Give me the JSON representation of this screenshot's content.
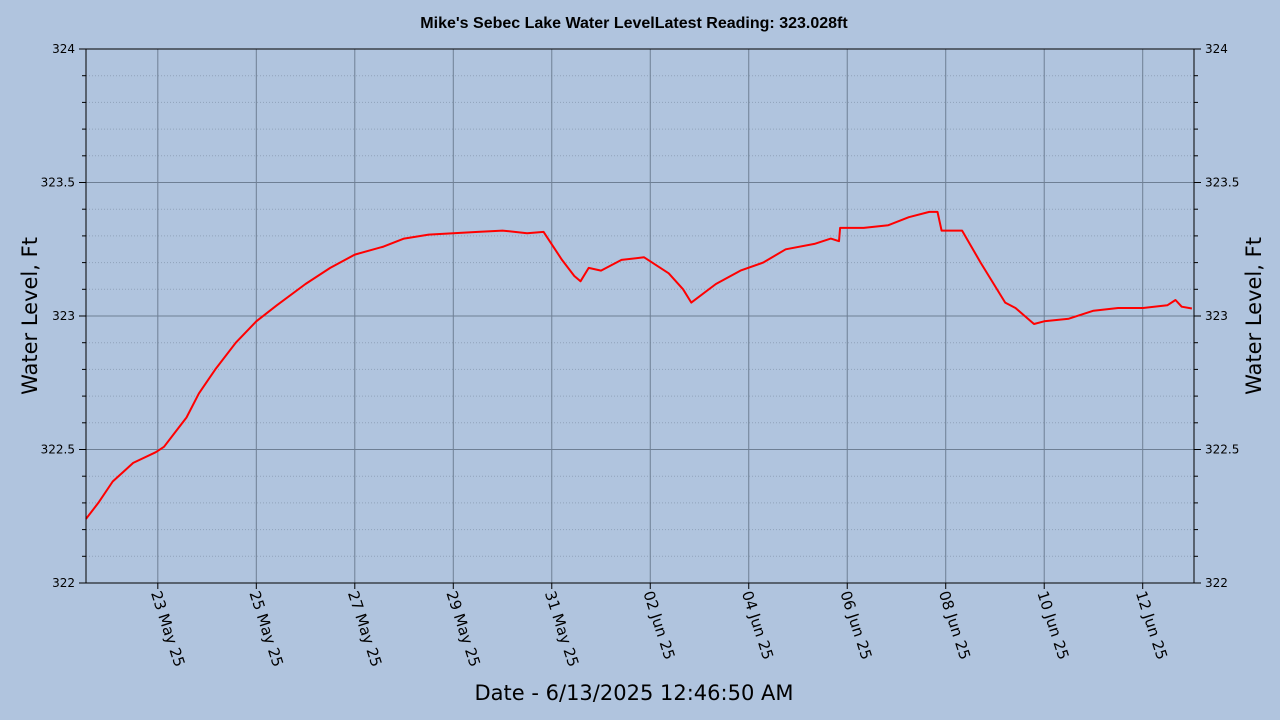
{
  "chart_data": {
    "type": "line",
    "title": "Mike's Sebec Lake Water LevelLatest Reading: 323.028ft",
    "xlabel": "Date - 6/13/2025 12:46:50 AM",
    "ylabel": "Water Level, Ft",
    "ylabel_right": "Water Level, Ft",
    "ylim": [
      322,
      324
    ],
    "xlim": [
      "2025-05-21T13:00",
      "2025-06-13T01:00"
    ],
    "yticks": [
      "322",
      "322.5",
      "323",
      "323.5",
      "324"
    ],
    "xticks": [
      {
        "date": "2025-05-23",
        "label": "23 May 25"
      },
      {
        "date": "2025-05-25",
        "label": "25 May 25"
      },
      {
        "date": "2025-05-27",
        "label": "27 May 25"
      },
      {
        "date": "2025-05-29",
        "label": "29 May 25"
      },
      {
        "date": "2025-05-31",
        "label": "31 May 25"
      },
      {
        "date": "2025-06-02",
        "label": "02 Jun 25"
      },
      {
        "date": "2025-06-04",
        "label": "04 Jun 25"
      },
      {
        "date": "2025-06-06",
        "label": "06 Jun 25"
      },
      {
        "date": "2025-06-08",
        "label": "08 Jun 25"
      },
      {
        "date": "2025-06-10",
        "label": "10 Jun 25"
      },
      {
        "date": "2025-06-12",
        "label": "12 Jun 25"
      }
    ],
    "grid": true,
    "colors": {
      "background": "#b0c4de",
      "line": "#ff0000",
      "grid_major": "#6e7f94",
      "grid_minor": "#8fa2ba",
      "axis": "#000000"
    },
    "series": [
      {
        "x": [
          "2025-05-21T13:00",
          "2025-05-21T19:00",
          "2025-05-22T02:00",
          "2025-05-22T12:00",
          "2025-05-22T23:00",
          "2025-05-23T03:00",
          "2025-05-23T08:00",
          "2025-05-23T14:00",
          "2025-05-23T20:00",
          "2025-05-24T04:00",
          "2025-05-24T14:00",
          "2025-05-25T00:00",
          "2025-05-25T10:00",
          "2025-05-26T00:00",
          "2025-05-26T12:00",
          "2025-05-27T00:00",
          "2025-05-27T14:00",
          "2025-05-28T00:00",
          "2025-05-28T12:00",
          "2025-05-29T00:00",
          "2025-05-29T12:00",
          "2025-05-30T00:00",
          "2025-05-30T12:00",
          "2025-05-30T20:00",
          "2025-05-31T05:00",
          "2025-05-31T11:00",
          "2025-05-31T14:00",
          "2025-05-31T18:00",
          "2025-06-01T00:00",
          "2025-06-01T10:00",
          "2025-06-01T21:00",
          "2025-06-02T09:00",
          "2025-06-02T16:00",
          "2025-06-02T20:00",
          "2025-06-03T08:00",
          "2025-06-03T20:00",
          "2025-06-04T07:00",
          "2025-06-04T18:00",
          "2025-06-05T08:00",
          "2025-06-05T16:00",
          "2025-06-05T20:00",
          "2025-06-05T20:30",
          "2025-06-06T08:00",
          "2025-06-06T20:00",
          "2025-06-07T06:00",
          "2025-06-07T16:00",
          "2025-06-07T20:00",
          "2025-06-07T22:00",
          "2025-06-08T08:00",
          "2025-06-08T17:00",
          "2025-06-09T05:00",
          "2025-06-09T10:00",
          "2025-06-09T19:00",
          "2025-06-10T00:00",
          "2025-06-10T12:00",
          "2025-06-11T00:00",
          "2025-06-11T12:00",
          "2025-06-12T00:00",
          "2025-06-12T12:00",
          "2025-06-12T16:00",
          "2025-06-12T19:00",
          "2025-06-13T00:00"
        ],
        "y": [
          322.24,
          322.3,
          322.38,
          322.45,
          322.49,
          322.51,
          322.56,
          322.62,
          322.71,
          322.8,
          322.9,
          322.98,
          323.04,
          323.12,
          323.18,
          323.23,
          323.26,
          323.29,
          323.305,
          323.31,
          323.315,
          323.32,
          323.31,
          323.315,
          323.21,
          323.15,
          323.13,
          323.18,
          323.17,
          323.21,
          323.22,
          323.16,
          323.1,
          323.05,
          323.12,
          323.17,
          323.2,
          323.25,
          323.27,
          323.29,
          323.28,
          323.33,
          323.33,
          323.34,
          323.37,
          323.39,
          323.39,
          323.32,
          323.32,
          323.2,
          323.05,
          323.03,
          322.97,
          322.98,
          322.99,
          323.02,
          323.03,
          323.03,
          323.04,
          323.06,
          323.035,
          323.028
        ]
      }
    ]
  }
}
